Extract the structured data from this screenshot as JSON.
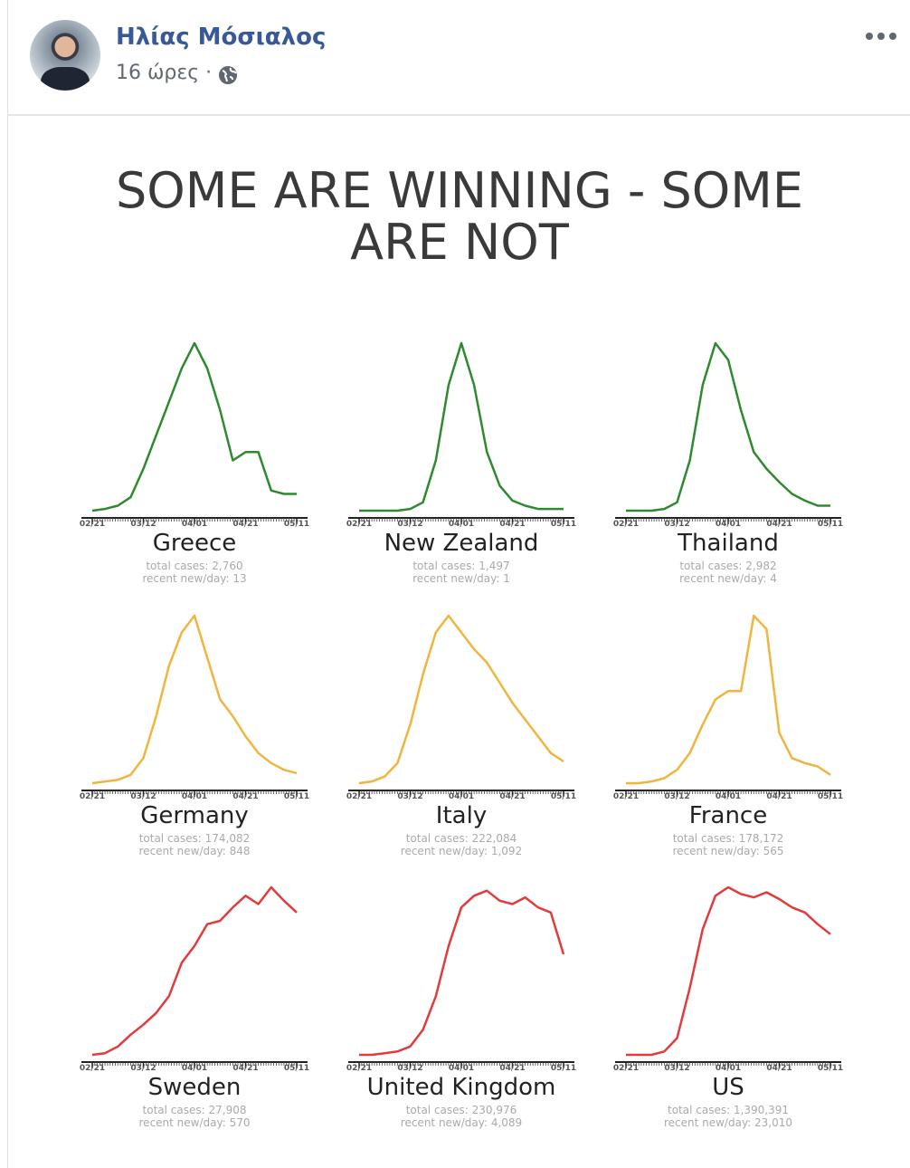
{
  "post": {
    "author": "Ηλίας Μόσιαλος",
    "time": "16 ώρες ·"
  },
  "image": {
    "title": "SOME ARE WINNING - SOME ARE NOT"
  },
  "chart_data": [
    {
      "type": "line",
      "title": "Greece",
      "annotations": [
        "total cases: 2,760",
        "recent new/day: 13"
      ],
      "color": "#2f8a2f",
      "ylim": [
        0,
        100
      ],
      "categories": [
        "02/21",
        null,
        null,
        null,
        "03/12",
        null,
        null,
        null,
        "04/01",
        null,
        null,
        null,
        "04/21",
        null,
        null,
        null,
        "05/11"
      ],
      "values": [
        0,
        1,
        3,
        8,
        25,
        45,
        65,
        85,
        100,
        85,
        60,
        30,
        35,
        35,
        12,
        10,
        10
      ]
    },
    {
      "type": "line",
      "title": "New Zealand",
      "annotations": [
        "total cases: 1,497",
        "recent new/day: 1"
      ],
      "color": "#2f8a2f",
      "ylim": [
        0,
        100
      ],
      "categories": [
        "02/21",
        null,
        null,
        null,
        "03/12",
        null,
        null,
        null,
        "04/01",
        null,
        null,
        null,
        "04/21",
        null,
        null,
        null,
        "05/11"
      ],
      "values": [
        0,
        0,
        0,
        0,
        1,
        5,
        30,
        75,
        100,
        75,
        35,
        15,
        6,
        3,
        1,
        1,
        1
      ]
    },
    {
      "type": "line",
      "title": "Thailand",
      "annotations": [
        "total cases: 2,982",
        "recent new/day: 4"
      ],
      "color": "#2f8a2f",
      "ylim": [
        0,
        100
      ],
      "categories": [
        "02/21",
        null,
        null,
        null,
        "03/12",
        null,
        null,
        null,
        "04/01",
        null,
        null,
        null,
        "04/21",
        null,
        null,
        null,
        "05/11"
      ],
      "values": [
        0,
        0,
        0,
        1,
        5,
        30,
        75,
        100,
        90,
        60,
        35,
        25,
        17,
        10,
        6,
        3,
        3
      ]
    },
    {
      "type": "line",
      "title": "Germany",
      "annotations": [
        "total cases: 174,082",
        "recent new/day: 848"
      ],
      "color": "#f0b53e",
      "ylim": [
        0,
        100
      ],
      "categories": [
        "02/21",
        null,
        null,
        null,
        "03/12",
        null,
        null,
        null,
        "04/01",
        null,
        null,
        null,
        "04/21",
        null,
        null,
        null,
        "05/11"
      ],
      "values": [
        0,
        1,
        2,
        5,
        15,
        40,
        70,
        90,
        100,
        75,
        50,
        40,
        28,
        18,
        12,
        8,
        6
      ]
    },
    {
      "type": "line",
      "title": "Italy",
      "annotations": [
        "total cases: 222,084",
        "recent new/day: 1,092"
      ],
      "color": "#f0b53e",
      "ylim": [
        0,
        100
      ],
      "categories": [
        "02/21",
        null,
        null,
        null,
        "03/12",
        null,
        null,
        null,
        "04/01",
        null,
        null,
        null,
        "04/21",
        null,
        null,
        null,
        "05/11"
      ],
      "values": [
        0,
        1,
        4,
        12,
        35,
        65,
        90,
        100,
        90,
        80,
        72,
        60,
        48,
        38,
        28,
        18,
        13
      ]
    },
    {
      "type": "line",
      "title": "France",
      "annotations": [
        "total cases: 178,172",
        "recent new/day: 565"
      ],
      "color": "#f0b53e",
      "ylim": [
        0,
        100
      ],
      "categories": [
        "02/21",
        null,
        null,
        null,
        "03/12",
        null,
        null,
        null,
        "04/01",
        null,
        null,
        null,
        "04/21",
        null,
        null,
        null,
        "05/11"
      ],
      "values": [
        0,
        0,
        1,
        3,
        8,
        18,
        35,
        50,
        55,
        55,
        100,
        92,
        30,
        15,
        12,
        10,
        5
      ]
    },
    {
      "type": "line",
      "title": "Sweden",
      "annotations": [
        "total cases: 27,908",
        "recent new/day: 570"
      ],
      "color": "#e23b3b",
      "ylim": [
        0,
        100
      ],
      "categories": [
        "02/21",
        null,
        null,
        null,
        "03/12",
        null,
        null,
        null,
        "04/01",
        null,
        null,
        null,
        "04/21",
        null,
        null,
        null,
        "05/11"
      ],
      "values": [
        0,
        1,
        5,
        12,
        18,
        25,
        35,
        55,
        65,
        78,
        80,
        88,
        95,
        90,
        100,
        92,
        85
      ]
    },
    {
      "type": "line",
      "title": "United Kingdom",
      "annotations": [
        "total cases: 230,976",
        "recent new/day: 4,089"
      ],
      "color": "#e23b3b",
      "ylim": [
        0,
        100
      ],
      "categories": [
        "02/21",
        null,
        null,
        null,
        "03/12",
        null,
        null,
        null,
        "04/01",
        null,
        null,
        null,
        "04/21",
        null,
        null,
        null,
        "05/11"
      ],
      "values": [
        0,
        0,
        1,
        2,
        5,
        15,
        35,
        65,
        88,
        95,
        98,
        92,
        90,
        94,
        88,
        85,
        60
      ]
    },
    {
      "type": "line",
      "title": "US",
      "annotations": [
        "total cases: 1,390,391",
        "recent new/day: 23,010"
      ],
      "color": "#e23b3b",
      "ylim": [
        0,
        100
      ],
      "categories": [
        "02/21",
        null,
        null,
        null,
        "03/12",
        null,
        null,
        null,
        "04/01",
        null,
        null,
        null,
        "04/21",
        null,
        null,
        null,
        "05/11"
      ],
      "values": [
        0,
        0,
        0,
        2,
        10,
        40,
        75,
        95,
        100,
        96,
        94,
        97,
        93,
        88,
        85,
        78,
        72
      ]
    }
  ]
}
